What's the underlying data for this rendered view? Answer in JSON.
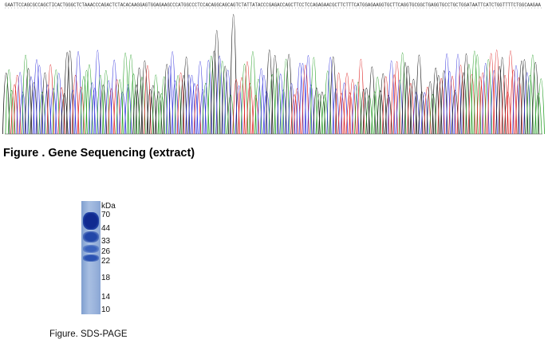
{
  "sequence_text": "GAATTCCAGCGCCAGCTICACTGGGCTCTAAACCCAGACTCTACACAAGGAGTGGAGAAGCCCATGGCCCTCCACAGGCAGCAGTCTATTATACCCGAGACCAGCTTCCTCCAGAGAACGCTTCTTTCATGGAGAAGGTGCTTCAGGTGCGGCTGAGGTGCCTGCTGGATAATTCATCTGGTTTTCTGGCAAGAA",
  "gene_caption": "Figure . Gene Sequencing (extract)",
  "gel": {
    "unit_label": "kDa",
    "markers": [
      "70",
      "44",
      "33",
      "26",
      "22",
      "18",
      "14",
      "10"
    ]
  },
  "sds_caption": "Figure. SDS-PAGE",
  "colors": {
    "trace_a": "#2aa02a",
    "trace_c": "#3333dd",
    "trace_g": "#111111",
    "trace_t": "#dd2222",
    "gel_band": "#1f3fa8"
  }
}
